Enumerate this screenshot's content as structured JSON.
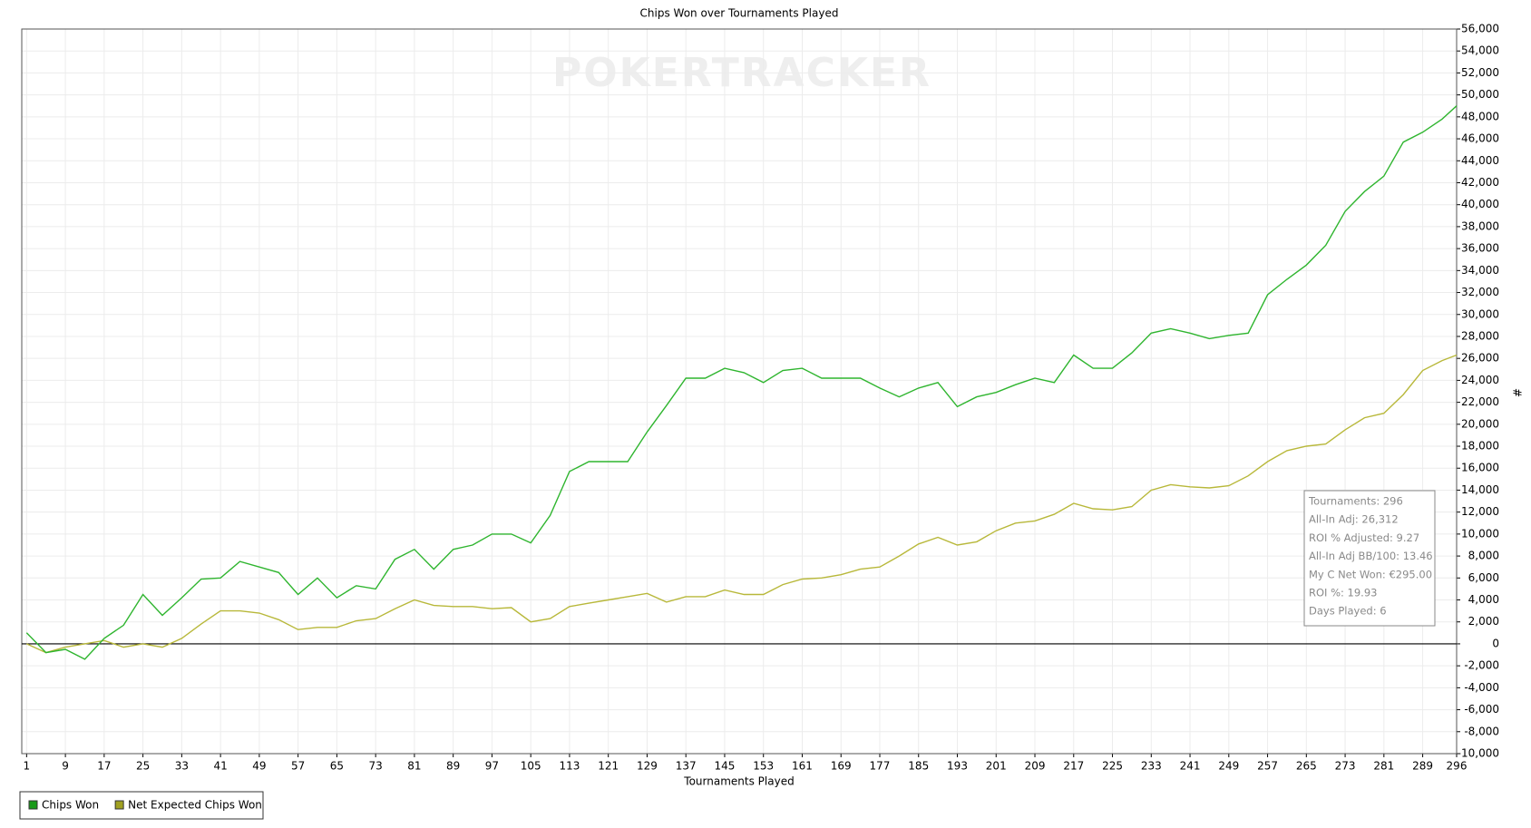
{
  "chart_data": {
    "type": "line",
    "title": "Chips Won over Tournaments Played",
    "xlabel": "Tournaments Played",
    "ylabel": "#",
    "watermark": "POKERTRACKER",
    "x": [
      1,
      5,
      9,
      13,
      17,
      21,
      25,
      29,
      33,
      37,
      41,
      45,
      49,
      53,
      57,
      61,
      65,
      69,
      73,
      77,
      81,
      85,
      89,
      93,
      97,
      101,
      105,
      109,
      113,
      117,
      121,
      125,
      129,
      133,
      137,
      141,
      145,
      149,
      153,
      157,
      161,
      165,
      169,
      173,
      177,
      181,
      185,
      189,
      193,
      197,
      201,
      205,
      209,
      213,
      217,
      221,
      225,
      229,
      233,
      237,
      241,
      245,
      249,
      253,
      257,
      261,
      265,
      269,
      273,
      277,
      281,
      285,
      289,
      293,
      296
    ],
    "series": [
      {
        "name": "Chips Won",
        "color": "#2fb52f",
        "legend_color": "#1a9a1a",
        "values": [
          1000,
          -800,
          -500,
          -1400,
          500,
          1700,
          4500,
          2600,
          4200,
          5900,
          6000,
          7500,
          7000,
          6500,
          4500,
          6000,
          4200,
          5300,
          5000,
          7700,
          8600,
          6800,
          8600,
          9000,
          10000,
          10000,
          9200,
          11700,
          15700,
          16600,
          16600,
          16600,
          19300,
          21700,
          24200,
          24200,
          25100,
          24700,
          23800,
          24900,
          25100,
          24200,
          24200,
          24200,
          23300,
          22500,
          23300,
          23800,
          21600,
          22500,
          22900,
          23600,
          24200,
          23800,
          26300,
          25100,
          25100,
          26500,
          28300,
          28700,
          28300,
          27800,
          28100,
          28300,
          31800,
          33200,
          34500,
          36300,
          39400,
          41200,
          42600,
          45700,
          46600,
          47800,
          49000
        ]
      },
      {
        "name": "Net Expected Chips Won",
        "color": "#b8b83a",
        "legend_color": "#a0a020",
        "values": [
          0,
          -800,
          -300,
          0,
          300,
          -300,
          0,
          -300,
          500,
          1800,
          3000,
          3000,
          2800,
          2200,
          1300,
          1500,
          1500,
          2100,
          2300,
          3200,
          4000,
          3500,
          3400,
          3400,
          3200,
          3300,
          2000,
          2300,
          3400,
          3700,
          4000,
          4300,
          4600,
          3800,
          4300,
          4300,
          4900,
          4500,
          4500,
          5400,
          5900,
          6000,
          6300,
          6800,
          7000,
          8000,
          9100,
          9700,
          9000,
          9300,
          10300,
          11000,
          11200,
          11800,
          12800,
          12300,
          12200,
          12500,
          14000,
          14500,
          14300,
          14200,
          14400,
          15300,
          16600,
          17600,
          18000,
          18200,
          19500,
          20600,
          21000,
          22700,
          24900,
          25800,
          26300
        ]
      }
    ],
    "xlim": [
      0,
      296
    ],
    "xticks": [
      1,
      9,
      17,
      25,
      33,
      41,
      49,
      57,
      65,
      73,
      81,
      89,
      97,
      105,
      113,
      121,
      129,
      137,
      145,
      153,
      161,
      169,
      177,
      185,
      193,
      201,
      209,
      217,
      225,
      233,
      241,
      249,
      257,
      265,
      273,
      281,
      289,
      296
    ],
    "ylim": [
      -10000,
      56000
    ],
    "yticks": [
      {
        "value": -10000,
        "label": "-10,000"
      },
      {
        "value": -8000,
        "label": "-8,000"
      },
      {
        "value": -6000,
        "label": "-6,000"
      },
      {
        "value": -4000,
        "label": "-4,000"
      },
      {
        "value": -2000,
        "label": "-2,000"
      },
      0,
      {
        "value": 2000,
        "label": "2,000"
      },
      {
        "value": 4000,
        "label": "4,000"
      },
      {
        "value": 6000,
        "label": "6,000"
      },
      {
        "value": 8000,
        "label": "8,000"
      },
      {
        "value": 10000,
        "label": "10,000"
      },
      {
        "value": 12000,
        "label": "12,000"
      },
      {
        "value": 14000,
        "label": "14,000"
      },
      {
        "value": 16000,
        "label": "16,000"
      },
      {
        "value": 18000,
        "label": "18,000"
      },
      {
        "value": 20000,
        "label": "20,000"
      },
      {
        "value": 22000,
        "label": "22,000"
      },
      {
        "value": 24000,
        "label": "24,000"
      },
      {
        "value": 26000,
        "label": "26,000"
      },
      {
        "value": 28000,
        "label": "28,000"
      },
      {
        "value": 30000,
        "label": "30,000"
      },
      {
        "value": 32000,
        "label": "32,000"
      },
      {
        "value": 34000,
        "label": "34,000"
      },
      {
        "value": 36000,
        "label": "36,000"
      },
      {
        "value": 38000,
        "label": "38,000"
      },
      {
        "value": 40000,
        "label": "40,000"
      },
      {
        "value": 42000,
        "label": "42,000"
      },
      {
        "value": 44000,
        "label": "44,000"
      },
      {
        "value": 46000,
        "label": "46,000"
      },
      {
        "value": 48000,
        "label": "48,000"
      },
      {
        "value": 50000,
        "label": "50,000"
      },
      {
        "value": 52000,
        "label": "52,000"
      },
      {
        "value": 54000,
        "label": "54,000"
      },
      {
        "value": 56000,
        "label": "56,000"
      }
    ],
    "grid": true,
    "stats_box": [
      "Tournaments: 296",
      "All-In Adj: 26,312",
      "ROI % Adjusted: 9.27",
      "All-In Adj BB/100: 13.46",
      "My C Net Won: €295.00",
      "ROI %: 19.93",
      "Days Played: 6"
    ]
  }
}
